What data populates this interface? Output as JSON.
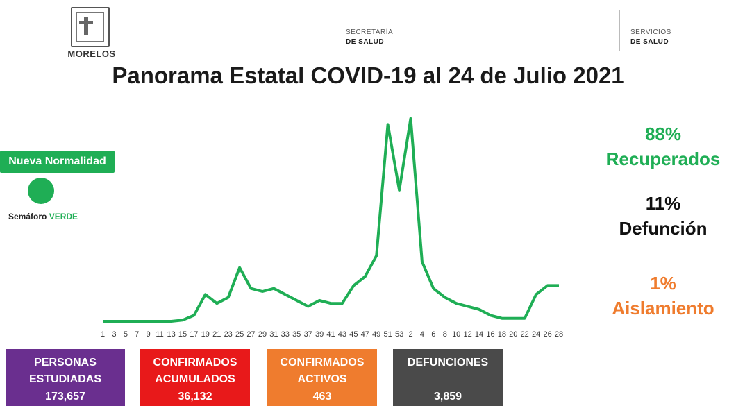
{
  "header": {
    "logo_label": "MORELOS",
    "secretaria_line1": "SECRETARÍA",
    "secretaria_line2": "DE SALUD",
    "servicios_line1": "SERVICIOS",
    "servicios_line2": "DE SALUD",
    "title": "Panorama Estatal COVID-19 al 24 de Julio 2021"
  },
  "status": {
    "badge": "Nueva Normalidad",
    "semaforo_label": "Semáforo",
    "semaforo_value": "VERDE",
    "color": "#1fae55"
  },
  "stats": {
    "recuperados_pct": "88%",
    "recuperados_label": "Recuperados",
    "defuncion_pct": "11%",
    "defuncion_label": "Defunción",
    "aislamiento_pct": "1%",
    "aislamiento_label": "Aislamiento"
  },
  "boxes": {
    "estudiadas_line1": "PERSONAS",
    "estudiadas_line2": "ESTUDIADAS",
    "estudiadas_value": "173,657",
    "acumulados_line1": "CONFIRMADOS",
    "acumulados_line2": "ACUMULADOS",
    "acumulados_value": "36,132",
    "activos_line1": "CONFIRMADOS",
    "activos_line2": "ACTIVOS",
    "activos_value": "463",
    "defunciones_line1": "DEFUNCIONES",
    "defunciones_value": "3,859"
  },
  "chart_data": {
    "type": "line",
    "color": "#1fae55",
    "x": [
      "1",
      "3",
      "5",
      "7",
      "9",
      "11",
      "13",
      "15",
      "17",
      "19",
      "21",
      "23",
      "25",
      "27",
      "29",
      "31",
      "33",
      "35",
      "37",
      "39",
      "41",
      "43",
      "45",
      "47",
      "49",
      "51",
      "53",
      "2",
      "4",
      "6",
      "8",
      "10",
      "12",
      "14",
      "16",
      "18",
      "20",
      "22",
      "24",
      "26",
      "28"
    ],
    "values": [
      0,
      0,
      0,
      0,
      0,
      0,
      0,
      2,
      10,
      45,
      30,
      40,
      90,
      55,
      50,
      55,
      45,
      35,
      25,
      35,
      30,
      30,
      60,
      75,
      110,
      330,
      220,
      340,
      100,
      55,
      40,
      30,
      25,
      20,
      10,
      5,
      5,
      5,
      45,
      60,
      60
    ],
    "ylim": [
      0,
      370
    ]
  }
}
